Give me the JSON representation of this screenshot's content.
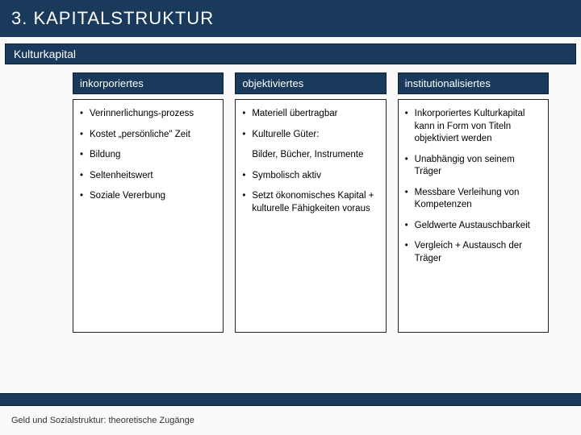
{
  "colors": {
    "bar_bg": "#1a3a5c",
    "bar_text": "#ffffff",
    "border": "#0c2238",
    "body_bg": "#fafafa",
    "box_bg": "#ffffff",
    "box_border": "#222222",
    "bullet_color": "#000000",
    "footer_text": "#333333"
  },
  "typography": {
    "title_fontsize": 22,
    "subtitle_fontsize": 14,
    "colheader_fontsize": 13,
    "body_fontsize": 11.5,
    "footer_fontsize": 11,
    "font_family": "Arial"
  },
  "layout": {
    "slide_width": 720,
    "slide_height": 540,
    "columns": 3,
    "column_gap": 14,
    "body_min_height": 290
  },
  "title": "3. KAPITALSTRUKTUR",
  "subtitle": "Kulturkapital",
  "cols": [
    {
      "header": "inkorporiertes",
      "items": [
        {
          "text": "Verinnerlichungs-prozess",
          "bullet": true
        },
        {
          "text": "Kostet „persönliche\" Zeit",
          "bullet": true
        },
        {
          "text": "Bildung",
          "bullet": true
        },
        {
          "text": "Seltenheitswert",
          "bullet": true
        },
        {
          "text": "Soziale Vererbung",
          "bullet": true
        }
      ]
    },
    {
      "header": "objektiviertes",
      "items": [
        {
          "text": "Materiell übertragbar",
          "bullet": true
        },
        {
          "text": "Kulturelle Güter:",
          "bullet": true
        },
        {
          "text": "Bilder, Bücher, Instrumente",
          "bullet": false
        },
        {
          "text": "Symbolisch aktiv",
          "bullet": true
        },
        {
          "text": "Setzt ökonomisches Kapital + kulturelle Fähigkeiten voraus",
          "bullet": true
        }
      ]
    },
    {
      "header": "institutionalisiertes",
      "items": [
        {
          "text": "Inkorporiertes Kulturkapital kann in Form von Titeln objektiviert werden",
          "bullet": true
        },
        {
          "text": "Unabhängig von seinem Träger",
          "bullet": true
        },
        {
          "text": "Messbare Verleihung von Kompetenzen",
          "bullet": true
        },
        {
          "text": "Geldwerte Austauschbarkeit",
          "bullet": true
        },
        {
          "text": "Vergleich + Austausch der Träger",
          "bullet": true
        }
      ]
    }
  ],
  "footer": "Geld und Sozialstruktur: theoretische Zugänge"
}
